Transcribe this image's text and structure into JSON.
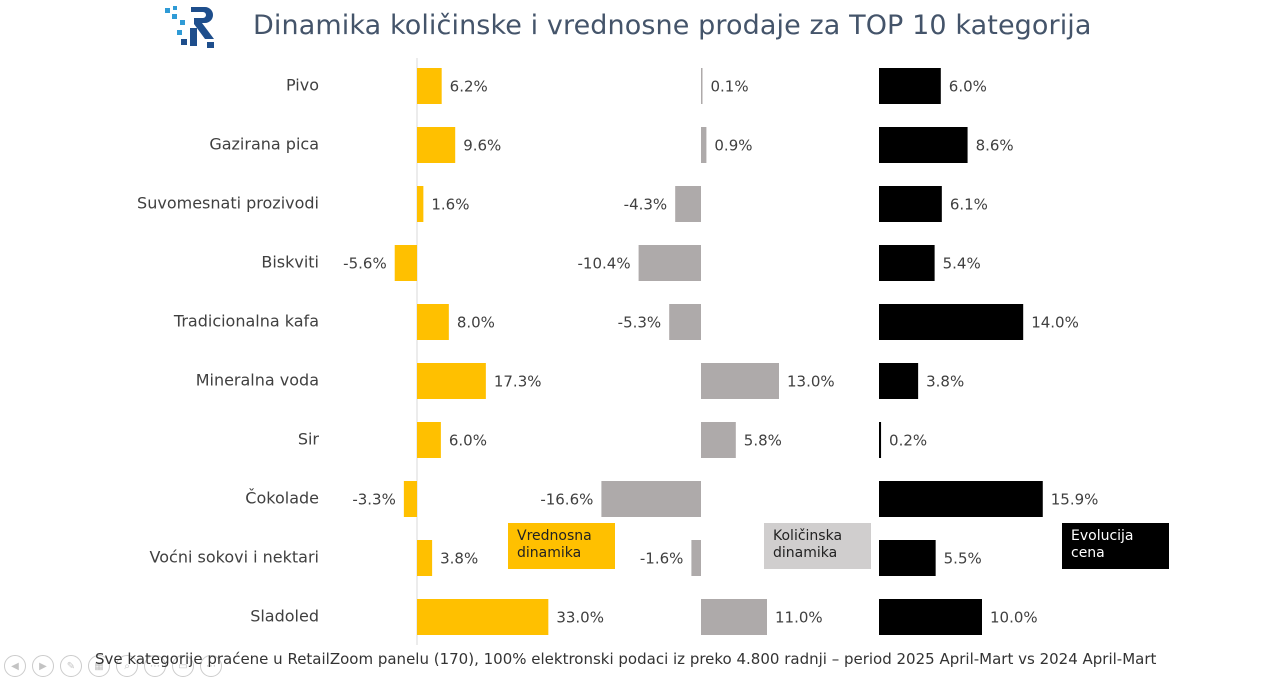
{
  "title": "Dinamika količinske i vrednosne prodaje za TOP 10 kategorija",
  "logo": {
    "icon": "retailzoom-logo-icon",
    "colors": [
      "#1e4e8c",
      "#2f9bd6"
    ]
  },
  "footer": "Sve kategorije praćene u RetailZoom panelu (170), 100% elektronski podaci iz preko 4.800 radnji – period 2025 April-Mart vs 2024 April-Mart",
  "legend": {
    "vrednosna": "Vrednosna dinamika",
    "kolicinska": "Količinska dinamika",
    "evolucija": "Evolucija cena"
  },
  "presentation_controls": [
    "previous-icon",
    "next-icon",
    "pen-icon",
    "slides-icon",
    "zoom-icon",
    "more-icon",
    "video-icon",
    "options-icon"
  ],
  "chart_data": {
    "type": "bar",
    "orientation": "horizontal",
    "categories": [
      "Pivo",
      "Gazirana pica",
      "Suvomesnati prozivodi",
      "Biskviti",
      "Tradicionalna kafa",
      "Mineralna voda",
      "Sir",
      "Čokolade",
      "Voćni sokovi i nektari",
      "Sladoled"
    ],
    "series": [
      {
        "name": "Vrednosna dinamika",
        "color": "#ffc000",
        "values": [
          6.2,
          9.6,
          1.6,
          -5.6,
          8.0,
          17.3,
          6.0,
          -3.3,
          3.8,
          33.0
        ],
        "labels": [
          "6.2%",
          "9.6%",
          "1.6%",
          "-5.6%",
          "8.0%",
          "17.3%",
          "6.0%",
          "-3.3%",
          "3.8%",
          "33.0%"
        ]
      },
      {
        "name": "Količinska dinamika",
        "color": "#aeaaaa",
        "values": [
          0.1,
          0.9,
          -4.3,
          -10.4,
          -5.3,
          13.0,
          5.8,
          -16.6,
          -1.6,
          11.0
        ],
        "labels": [
          "0.1%",
          "0.9%",
          "-4.3%",
          "-10.4%",
          "-5.3%",
          "13.0%",
          "5.8%",
          "-16.6%",
          "-1.6%",
          "11.0%"
        ]
      },
      {
        "name": "Evolucija cena",
        "color": "#000000",
        "values": [
          6.0,
          8.6,
          6.1,
          5.4,
          14.0,
          3.8,
          0.2,
          15.9,
          5.5,
          10.0
        ],
        "labels": [
          "6.0%",
          "8.6%",
          "6.1%",
          "5.4%",
          "14.0%",
          "3.8%",
          "0.2%",
          "15.9%",
          "5.5%",
          "10.0%"
        ]
      }
    ],
    "unit": "%",
    "grid": false,
    "legend_placement": "bottom-right"
  }
}
